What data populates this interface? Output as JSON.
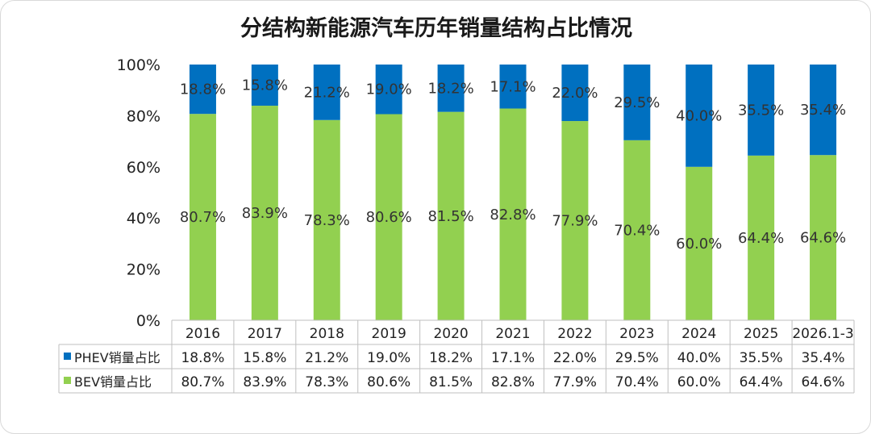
{
  "chart_data": {
    "type": "bar",
    "stacked": true,
    "title": "分结构新能源汽车历年销量结构占比情况",
    "categories": [
      "2016",
      "2017",
      "2018",
      "2019",
      "2020",
      "2021",
      "2022",
      "2023",
      "2024",
      "2025",
      "2026.1-3"
    ],
    "ylim": [
      0,
      100
    ],
    "yticks": [
      "0%",
      "20%",
      "40%",
      "60%",
      "80%",
      "100%"
    ],
    "series": [
      {
        "name": "BEV销量占比",
        "color": "#92d050",
        "values": [
          80.7,
          83.9,
          78.3,
          80.6,
          81.5,
          82.8,
          77.9,
          70.4,
          60.0,
          64.4,
          64.6
        ],
        "labels": [
          "80.7%",
          "83.9%",
          "78.3%",
          "80.6%",
          "81.5%",
          "82.8%",
          "77.9%",
          "70.4%",
          "60.0%",
          "64.4%",
          "64.6%"
        ]
      },
      {
        "name": "PHEV销量占比",
        "color": "#0070c0",
        "values": [
          18.8,
          15.8,
          21.2,
          19.0,
          18.2,
          17.1,
          22.0,
          29.5,
          40.0,
          35.5,
          35.4
        ],
        "labels": [
          "18.8%",
          "15.8%",
          "21.2%",
          "19.0%",
          "18.2%",
          "17.1%",
          "22.0%",
          "29.5%",
          "40.0%",
          "35.5%",
          "35.4%"
        ]
      }
    ],
    "data_table": true,
    "grid": false,
    "legend": "data-table"
  }
}
